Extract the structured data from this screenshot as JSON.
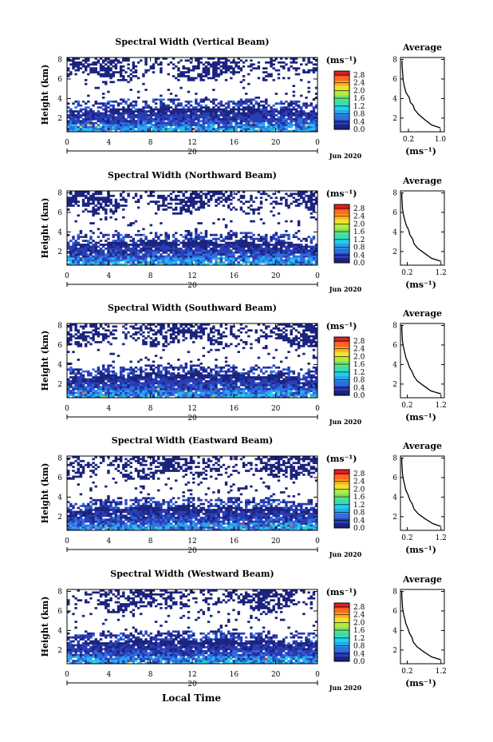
{
  "figure": {
    "xlabel": "Local Time",
    "day_label": "20",
    "date_label": "Jun 2020",
    "cbar_unit_label": "(ms⁻¹)",
    "avg_title": "Average",
    "avg_xlabel": "(ms⁻¹)",
    "colormap": [
      "#1a237e",
      "#2b3db5",
      "#2f6fe0",
      "#2aa5f0",
      "#1fd0e6",
      "#35e0b0",
      "#6fe070",
      "#b4ea3c",
      "#f0e030",
      "#ffb020",
      "#ff6a20",
      "#e02020"
    ]
  },
  "chart_data": [
    {
      "type": "heatmap",
      "title": "Spectral Width (Vertical Beam)",
      "ylabel": "Height (km)",
      "x_ticks": [
        "0",
        "4",
        "8",
        "12",
        "16",
        "20",
        "0"
      ],
      "y_ticks": [
        "2",
        "4",
        "6",
        "8"
      ],
      "xlim": [
        0,
        24
      ],
      "ylim": [
        0.6,
        8.2
      ],
      "cbar_ticks": [
        "0.0",
        "0.4",
        "0.8",
        "1.2",
        "1.6",
        "2.0",
        "2.4",
        "2.8"
      ],
      "cbar_range": [
        0,
        3.0
      ],
      "average": {
        "x_ticks": [
          "0.2",
          "1.0"
        ],
        "y_ticks": [
          "2",
          "4",
          "6",
          "8"
        ],
        "xlim": [
          0,
          1.1
        ],
        "ylim": [
          0.6,
          8.2
        ],
        "points": [
          [
            1.0,
            1.0
          ],
          [
            0.78,
            1.3
          ],
          [
            0.62,
            1.8
          ],
          [
            0.45,
            2.4
          ],
          [
            0.35,
            2.9
          ],
          [
            0.32,
            3.3
          ],
          [
            0.25,
            3.6
          ],
          [
            0.22,
            4.1
          ],
          [
            0.14,
            4.6
          ],
          [
            0.1,
            5.2
          ],
          [
            0.07,
            5.8
          ],
          [
            0.06,
            6.3
          ],
          [
            0.05,
            6.9
          ],
          [
            0.04,
            7.4
          ],
          [
            0.04,
            7.9
          ]
        ]
      }
    },
    {
      "type": "heatmap",
      "title": "Spectral Width (Northward Beam)",
      "ylabel": "Height (km)",
      "x_ticks": [
        "0",
        "4",
        "8",
        "12",
        "16",
        "20",
        "0"
      ],
      "y_ticks": [
        "2",
        "4",
        "6",
        "8"
      ],
      "xlim": [
        0,
        24
      ],
      "ylim": [
        0.6,
        8.2
      ],
      "cbar_ticks": [
        "0.0",
        "0.4",
        "0.8",
        "1.2",
        "1.6",
        "2.0",
        "2.4",
        "2.8"
      ],
      "cbar_range": [
        0,
        3.0
      ],
      "average": {
        "x_ticks": [
          "0.2",
          "1.2"
        ],
        "y_ticks": [
          "2",
          "4",
          "6",
          "8"
        ],
        "xlim": [
          0,
          1.3
        ],
        "ylim": [
          0.6,
          8.2
        ],
        "points": [
          [
            1.2,
            1.0
          ],
          [
            0.92,
            1.3
          ],
          [
            0.72,
            1.8
          ],
          [
            0.52,
            2.3
          ],
          [
            0.4,
            2.8
          ],
          [
            0.36,
            3.3
          ],
          [
            0.28,
            3.7
          ],
          [
            0.24,
            4.2
          ],
          [
            0.17,
            4.7
          ],
          [
            0.12,
            5.3
          ],
          [
            0.08,
            5.9
          ],
          [
            0.06,
            6.4
          ],
          [
            0.05,
            7.0
          ],
          [
            0.04,
            7.5
          ],
          [
            0.04,
            8.0
          ]
        ]
      }
    },
    {
      "type": "heatmap",
      "title": "Spectral Width (Southward Beam)",
      "ylabel": "Height (km)",
      "x_ticks": [
        "0",
        "4",
        "8",
        "12",
        "16",
        "20",
        "0"
      ],
      "y_ticks": [
        "2",
        "4",
        "6",
        "8"
      ],
      "xlim": [
        0,
        24
      ],
      "ylim": [
        0.6,
        8.2
      ],
      "cbar_ticks": [
        "0.0",
        "0.4",
        "0.8",
        "1.2",
        "1.6",
        "2.0",
        "2.4",
        "2.8"
      ],
      "cbar_range": [
        0,
        3.0
      ],
      "average": {
        "x_ticks": [
          "0.2",
          "1.2"
        ],
        "y_ticks": [
          "2",
          "4",
          "6",
          "8"
        ],
        "xlim": [
          0,
          1.3
        ],
        "ylim": [
          0.6,
          8.2
        ],
        "points": [
          [
            1.2,
            1.0
          ],
          [
            0.9,
            1.3
          ],
          [
            0.7,
            1.8
          ],
          [
            0.5,
            2.3
          ],
          [
            0.4,
            2.8
          ],
          [
            0.34,
            3.3
          ],
          [
            0.27,
            3.7
          ],
          [
            0.22,
            4.2
          ],
          [
            0.16,
            4.7
          ],
          [
            0.12,
            5.3
          ],
          [
            0.08,
            5.9
          ],
          [
            0.06,
            6.4
          ],
          [
            0.05,
            7.0
          ],
          [
            0.04,
            7.5
          ],
          [
            0.04,
            8.0
          ]
        ]
      }
    },
    {
      "type": "heatmap",
      "title": "Spectral Width (Eastward Beam)",
      "ylabel": "Height (km)",
      "x_ticks": [
        "0",
        "4",
        "8",
        "12",
        "16",
        "20",
        "0"
      ],
      "y_ticks": [
        "2",
        "4",
        "6",
        "8"
      ],
      "xlim": [
        0,
        24
      ],
      "ylim": [
        0.6,
        8.2
      ],
      "cbar_ticks": [
        "0.0",
        "0.4",
        "0.8",
        "1.2",
        "1.6",
        "2.0",
        "2.4",
        "2.8"
      ],
      "cbar_range": [
        0,
        3.0
      ],
      "average": {
        "x_ticks": [
          "0.2",
          "1.2"
        ],
        "y_ticks": [
          "2",
          "4",
          "6",
          "8"
        ],
        "xlim": [
          0,
          1.3
        ],
        "ylim": [
          0.6,
          8.2
        ],
        "points": [
          [
            1.2,
            1.0
          ],
          [
            0.95,
            1.3
          ],
          [
            0.72,
            1.8
          ],
          [
            0.52,
            2.3
          ],
          [
            0.4,
            2.8
          ],
          [
            0.35,
            3.3
          ],
          [
            0.28,
            3.7
          ],
          [
            0.23,
            4.2
          ],
          [
            0.16,
            4.7
          ],
          [
            0.12,
            5.3
          ],
          [
            0.08,
            5.9
          ],
          [
            0.06,
            6.4
          ],
          [
            0.05,
            7.0
          ],
          [
            0.04,
            7.5
          ],
          [
            0.04,
            8.0
          ]
        ]
      }
    },
    {
      "type": "heatmap",
      "title": "Spectral Width (Westward Beam)",
      "ylabel": "Height (km)",
      "x_ticks": [
        "0",
        "4",
        "8",
        "12",
        "16",
        "20",
        "0"
      ],
      "y_ticks": [
        "2",
        "4",
        "6",
        "8"
      ],
      "xlim": [
        0,
        24
      ],
      "ylim": [
        0.6,
        8.2
      ],
      "cbar_ticks": [
        "0.0",
        "0.4",
        "0.8",
        "1.2",
        "1.6",
        "2.0",
        "2.4",
        "2.8"
      ],
      "cbar_range": [
        0,
        3.0
      ],
      "average": {
        "x_ticks": [
          "0.2",
          "1.2"
        ],
        "y_ticks": [
          "2",
          "4",
          "6",
          "8"
        ],
        "xlim": [
          0,
          1.3
        ],
        "ylim": [
          0.6,
          8.2
        ],
        "points": [
          [
            1.2,
            1.0
          ],
          [
            0.92,
            1.3
          ],
          [
            0.7,
            1.8
          ],
          [
            0.5,
            2.3
          ],
          [
            0.38,
            2.8
          ],
          [
            0.34,
            3.3
          ],
          [
            0.27,
            3.7
          ],
          [
            0.22,
            4.2
          ],
          [
            0.16,
            4.7
          ],
          [
            0.12,
            5.3
          ],
          [
            0.08,
            5.9
          ],
          [
            0.06,
            6.4
          ],
          [
            0.05,
            7.0
          ],
          [
            0.04,
            7.5
          ],
          [
            0.04,
            8.0
          ]
        ]
      }
    }
  ]
}
